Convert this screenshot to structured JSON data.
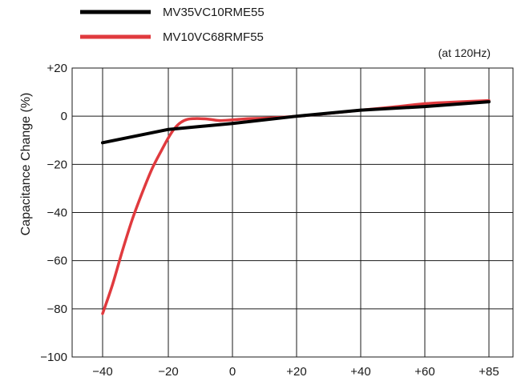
{
  "chart_data": {
    "type": "line",
    "title": "",
    "note": "(at 120Hz)",
    "xlabel": "",
    "ylabel": "Capacitance Change (%)",
    "xlim": [
      -40,
      85
    ],
    "ylim": [
      -100,
      20
    ],
    "x_ticks": [
      -40,
      -20,
      0,
      20,
      40,
      60,
      85
    ],
    "x_tick_labels": [
      "−40",
      "−20",
      "0",
      "+20",
      "+40",
      "+60",
      "+85"
    ],
    "y_ticks": [
      20,
      0,
      -20,
      -40,
      -60,
      -80,
      -100
    ],
    "y_tick_labels": [
      "+20",
      "0",
      "−20",
      "−40",
      "−60",
      "−80",
      "−100"
    ],
    "grid": true,
    "legend_position": "top-left, above plot",
    "series": [
      {
        "name": "MV35VC10RME55",
        "color": "#000000",
        "x": [
          -40,
          -20,
          0,
          20,
          40,
          60,
          85
        ],
        "y": [
          -11,
          -5.5,
          -3,
          0,
          2.5,
          4,
          6
        ]
      },
      {
        "name": "MV10VC68RMF55",
        "color": "#e03a3e",
        "x": [
          -40,
          -37,
          -34,
          -31,
          -28,
          -25,
          -22,
          -20,
          -18,
          -16,
          -14,
          -12,
          -10,
          -7,
          -4,
          0,
          5,
          10,
          20,
          30,
          40,
          50,
          60,
          70,
          85
        ],
        "y": [
          -82,
          -70,
          -56,
          -43,
          -32,
          -22,
          -14,
          -9,
          -5,
          -2.5,
          -1.3,
          -1,
          -1,
          -1.3,
          -1.8,
          -1.5,
          -1,
          -0.8,
          0,
          1.2,
          2.5,
          3.8,
          5.2,
          5.8,
          6.5
        ]
      }
    ]
  }
}
